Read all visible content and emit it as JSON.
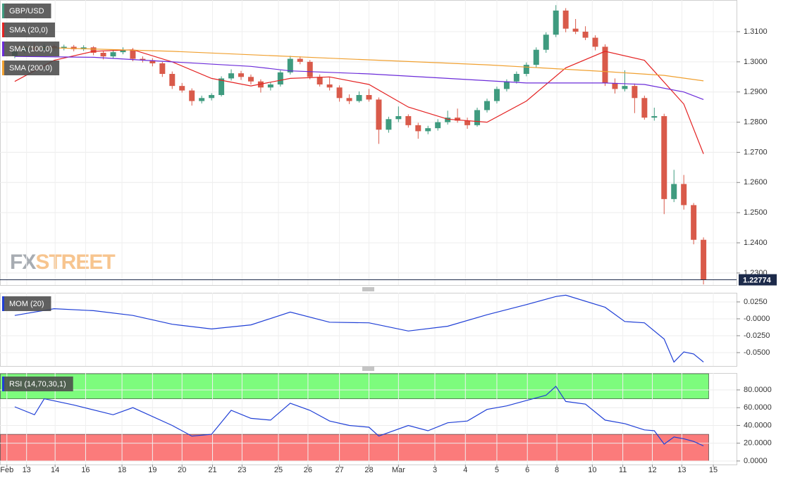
{
  "chart_data": [
    {
      "type": "candlestick",
      "title": "GBP/USD",
      "colors": {
        "up": "#3f9b7f",
        "down": "#d95a4a"
      },
      "x": [
        0,
        1,
        2,
        3,
        4,
        5,
        6,
        7,
        8,
        9,
        10,
        11,
        12,
        13,
        14,
        15,
        16,
        17,
        18,
        19,
        20,
        21,
        22,
        23,
        24,
        25,
        26,
        27,
        28,
        29,
        30,
        31,
        32,
        33,
        34,
        35,
        36,
        37,
        38,
        39,
        40,
        41,
        42,
        43,
        44,
        45,
        46,
        47,
        48,
        49,
        50,
        51,
        52,
        53,
        54,
        55,
        56,
        57,
        58,
        59,
        60,
        61,
        62,
        63,
        64,
        65,
        66,
        67,
        68,
        69,
        70
      ],
      "ohlc": [
        [
          1.302,
          1.3042,
          1.3012,
          1.3035
        ],
        [
          1.3035,
          1.3058,
          1.3028,
          1.3048
        ],
        [
          1.3048,
          1.3062,
          1.3032,
          1.304
        ],
        [
          1.304,
          1.306,
          1.3034,
          1.3052
        ],
        [
          1.3052,
          1.3058,
          1.3036,
          1.3045
        ],
        [
          1.3045,
          1.3057,
          1.3038,
          1.305
        ],
        [
          1.305,
          1.3056,
          1.3035,
          1.3042
        ],
        [
          1.3042,
          1.3055,
          1.3036,
          1.3048
        ],
        [
          1.3048,
          1.3052,
          1.3022,
          1.303
        ],
        [
          1.303,
          1.3036,
          1.3008,
          1.3018
        ],
        [
          1.3018,
          1.304,
          1.3012,
          1.3032
        ],
        [
          1.3032,
          1.3048,
          1.3025,
          1.304
        ],
        [
          1.304,
          1.3046,
          1.3002,
          1.301
        ],
        [
          1.301,
          1.3018,
          1.2998,
          1.3005
        ],
        [
          1.3005,
          1.3012,
          1.2985,
          1.2995
        ],
        [
          1.2995,
          1.3,
          1.295,
          1.296
        ],
        [
          1.296,
          1.2968,
          1.291,
          1.292
        ],
        [
          1.292,
          1.293,
          1.2898,
          1.2905
        ],
        [
          1.2905,
          1.2912,
          1.2855,
          1.287
        ],
        [
          1.287,
          1.2888,
          1.2862,
          1.288
        ],
        [
          1.288,
          1.2896,
          1.2872,
          1.289
        ],
        [
          1.289,
          1.2952,
          1.2885,
          1.2945
        ],
        [
          1.2945,
          1.2975,
          1.2938,
          1.2962
        ],
        [
          1.2962,
          1.297,
          1.294,
          1.295
        ],
        [
          1.295,
          1.2958,
          1.2925,
          1.2935
        ],
        [
          1.2935,
          1.2942,
          1.2898,
          1.2915
        ],
        [
          1.2915,
          1.2932,
          1.2905,
          1.2925
        ],
        [
          1.2925,
          1.2972,
          1.2918,
          1.2965
        ],
        [
          1.2965,
          1.302,
          1.2958,
          1.301
        ],
        [
          1.301,
          1.3018,
          1.2992,
          1.3
        ],
        [
          1.3,
          1.3006,
          1.2942,
          1.295
        ],
        [
          1.295,
          1.2958,
          1.2918,
          1.2925
        ],
        [
          1.2925,
          1.2948,
          1.2905,
          1.2915
        ],
        [
          1.2915,
          1.2922,
          1.2868,
          1.288
        ],
        [
          1.288,
          1.2892,
          1.286,
          1.287
        ],
        [
          1.287,
          1.2902,
          1.2865,
          1.289
        ],
        [
          1.289,
          1.291,
          1.2868,
          1.2875
        ],
        [
          1.2875,
          1.2882,
          1.2728,
          1.2775
        ],
        [
          1.2775,
          1.2818,
          1.2765,
          1.281
        ],
        [
          1.281,
          1.2852,
          1.28,
          1.282
        ],
        [
          1.282,
          1.2826,
          1.2782,
          1.279
        ],
        [
          1.279,
          1.2798,
          1.2745,
          1.277
        ],
        [
          1.277,
          1.2788,
          1.276,
          1.278
        ],
        [
          1.278,
          1.281,
          1.2772,
          1.28
        ],
        [
          1.28,
          1.2838,
          1.2792,
          1.2815
        ],
        [
          1.2815,
          1.2845,
          1.2798,
          1.2805
        ],
        [
          1.2805,
          1.2815,
          1.2778,
          1.279
        ],
        [
          1.279,
          1.2848,
          1.2785,
          1.284
        ],
        [
          1.284,
          1.2878,
          1.2832,
          1.287
        ],
        [
          1.287,
          1.2918,
          1.2862,
          1.291
        ],
        [
          1.291,
          1.2942,
          1.2902,
          1.2935
        ],
        [
          1.2935,
          1.2968,
          1.2928,
          1.296
        ],
        [
          1.296,
          1.2998,
          1.2952,
          1.299
        ],
        [
          1.299,
          1.3048,
          1.2982,
          1.304
        ],
        [
          1.304,
          1.3098,
          1.303,
          1.309
        ],
        [
          1.309,
          1.3188,
          1.3082,
          1.317
        ],
        [
          1.317,
          1.3178,
          1.3098,
          1.311
        ],
        [
          1.311,
          1.3142,
          1.3092,
          1.31
        ],
        [
          1.31,
          1.3118,
          1.3072,
          1.308
        ],
        [
          1.308,
          1.3088,
          1.3038,
          1.305
        ],
        [
          1.305,
          1.3058,
          1.292,
          1.293
        ],
        [
          1.293,
          1.2945,
          1.2895,
          1.291
        ],
        [
          1.291,
          1.2972,
          1.2902,
          1.292
        ],
        [
          1.292,
          1.2928,
          1.283,
          1.288
        ],
        [
          1.288,
          1.2888,
          1.2808,
          1.2815
        ],
        [
          1.2815,
          1.2848,
          1.2805,
          1.282
        ],
        [
          1.282,
          1.2828,
          1.2495,
          1.2545
        ],
        [
          1.2545,
          1.2642,
          1.2535,
          1.2595
        ],
        [
          1.2595,
          1.2625,
          1.251,
          1.2525
        ],
        [
          1.2525,
          1.2532,
          1.2395,
          1.241
        ],
        [
          1.241,
          1.2418,
          1.2262,
          1.2277
        ]
      ],
      "series": [
        {
          "name": "SMA (20,0)",
          "color": "#e42222",
          "x": [
            0,
            4,
            8,
            12,
            16,
            20,
            24,
            28,
            32,
            36,
            40,
            44,
            48,
            52,
            56,
            60,
            64,
            68,
            70
          ],
          "values": [
            1.2935,
            1.3005,
            1.3035,
            1.304,
            1.3,
            1.2945,
            1.292,
            1.2945,
            1.295,
            1.2925,
            1.285,
            1.281,
            1.28,
            1.287,
            1.298,
            1.3035,
            1.3005,
            1.286,
            1.2695
          ]
        },
        {
          "name": "SMA (100,0)",
          "color": "#6b2bd9",
          "x": [
            0,
            8,
            16,
            24,
            28,
            36,
            44,
            52,
            60,
            64,
            68,
            70
          ],
          "values": [
            1.3018,
            1.3015,
            1.3,
            1.2985,
            1.297,
            1.296,
            1.2945,
            1.293,
            1.293,
            1.2925,
            1.29,
            1.2875
          ]
        },
        {
          "name": "SMA (200,0)",
          "color": "#f0a030",
          "x": [
            0,
            16,
            32,
            48,
            60,
            66,
            70
          ],
          "values": [
            1.305,
            1.3035,
            1.3012,
            1.299,
            1.2968,
            1.2955,
            1.2937
          ]
        }
      ],
      "last_price": 1.22774,
      "xlim": [
        -1.5,
        73.36
      ],
      "ylim": [
        1.226,
        1.3205
      ],
      "yticks": [
        {
          "value": 1.23,
          "label": "1.2300"
        },
        {
          "value": 1.24,
          "label": "1.2400"
        },
        {
          "value": 1.25,
          "label": "1.2500"
        },
        {
          "value": 1.26,
          "label": "1.2600"
        },
        {
          "value": 1.27,
          "label": "1.2700"
        },
        {
          "value": 1.28,
          "label": "1.2800"
        },
        {
          "value": 1.29,
          "label": "1.2900"
        },
        {
          "value": 1.3,
          "label": "1.3000"
        },
        {
          "value": 1.31,
          "label": "1.3100"
        }
      ],
      "grid": true,
      "watermark": [
        "FX",
        "STREET"
      ]
    },
    {
      "type": "line",
      "series": [
        {
          "name": "MOM (20)",
          "color": "#1f3fd6",
          "x": [
            0,
            4,
            8,
            12,
            16,
            20,
            24,
            28,
            32,
            36,
            40,
            44,
            48,
            52,
            55,
            56,
            60,
            62,
            64,
            66,
            67,
            68,
            69,
            70
          ],
          "values": [
            0.005,
            0.015,
            0.012,
            0.005,
            -0.008,
            -0.015,
            -0.009,
            0.01,
            -0.005,
            -0.006,
            -0.018,
            -0.011,
            0.006,
            0.021,
            0.033,
            0.035,
            0.017,
            -0.004,
            -0.006,
            -0.03,
            -0.064,
            -0.049,
            -0.052,
            -0.064
          ]
        }
      ],
      "xlim": [
        -1.5,
        73.36
      ],
      "ylim": [
        -0.0698,
        0.0385
      ],
      "yticks": [
        {
          "value": 0.025,
          "label": "0.0250"
        },
        {
          "value": 0,
          "label": "-0.0000"
        },
        {
          "value": -0.025,
          "label": "-0.0250"
        },
        {
          "value": -0.05,
          "label": "-0.0500"
        }
      ],
      "grid": true
    },
    {
      "type": "line",
      "series": [
        {
          "name": "RSI (14,70,30,1)",
          "color": "#1f3fd6",
          "x": [
            0,
            2,
            3,
            6,
            10,
            12,
            16,
            18,
            20,
            22,
            24,
            26,
            28,
            30,
            32,
            34,
            36,
            37,
            40,
            42,
            44,
            46,
            48,
            50,
            52,
            54,
            55,
            56,
            58,
            60,
            62,
            64,
            65,
            66,
            67,
            68,
            69,
            70
          ],
          "values": [
            61,
            52,
            70,
            63,
            52,
            60,
            40,
            28,
            30,
            57,
            48,
            46,
            65,
            57,
            45,
            40,
            38,
            28,
            40,
            34,
            43,
            45,
            58,
            62,
            68,
            74,
            84,
            67,
            64,
            46,
            42,
            35,
            34,
            19,
            27,
            25,
            22,
            17
          ]
        }
      ],
      "overbought": 70,
      "oversold": 30,
      "zone_colors": {
        "overbought": "#7dfc7d",
        "oversold": "#fb7b7b"
      },
      "xlim": [
        -1.5,
        73.36
      ],
      "ylim": [
        -4,
        99
      ],
      "yticks": [
        {
          "value": 0,
          "label": "0.0000"
        },
        {
          "value": 20,
          "label": "20.0000"
        },
        {
          "value": 40,
          "label": "40.0000"
        },
        {
          "value": 60,
          "label": "60.0000"
        },
        {
          "value": 80,
          "label": "80.0000"
        }
      ],
      "xticks": [
        {
          "value": -0.8,
          "label": "Feb"
        },
        {
          "value": 1.2,
          "label": "13"
        },
        {
          "value": 4.1,
          "label": "14"
        },
        {
          "value": 7.2,
          "label": "16"
        },
        {
          "value": 10.9,
          "label": "18"
        },
        {
          "value": 14,
          "label": "19"
        },
        {
          "value": 17,
          "label": "20"
        },
        {
          "value": 20.1,
          "label": "21"
        },
        {
          "value": 23.1,
          "label": "23"
        },
        {
          "value": 26.8,
          "label": "25"
        },
        {
          "value": 29.8,
          "label": "26"
        },
        {
          "value": 33,
          "label": "27"
        },
        {
          "value": 36,
          "label": "28"
        },
        {
          "value": 39,
          "label": "Mar"
        },
        {
          "value": 42.7,
          "label": "3"
        },
        {
          "value": 45.8,
          "label": "4"
        },
        {
          "value": 49,
          "label": "5"
        },
        {
          "value": 52.1,
          "label": "6"
        },
        {
          "value": 55.1,
          "label": "8"
        },
        {
          "value": 58.7,
          "label": "10"
        },
        {
          "value": 61.8,
          "label": "11"
        },
        {
          "value": 64.8,
          "label": "12"
        },
        {
          "value": 67.8,
          "label": "13"
        },
        {
          "value": 71,
          "label": "15"
        }
      ],
      "grid": true
    }
  ]
}
